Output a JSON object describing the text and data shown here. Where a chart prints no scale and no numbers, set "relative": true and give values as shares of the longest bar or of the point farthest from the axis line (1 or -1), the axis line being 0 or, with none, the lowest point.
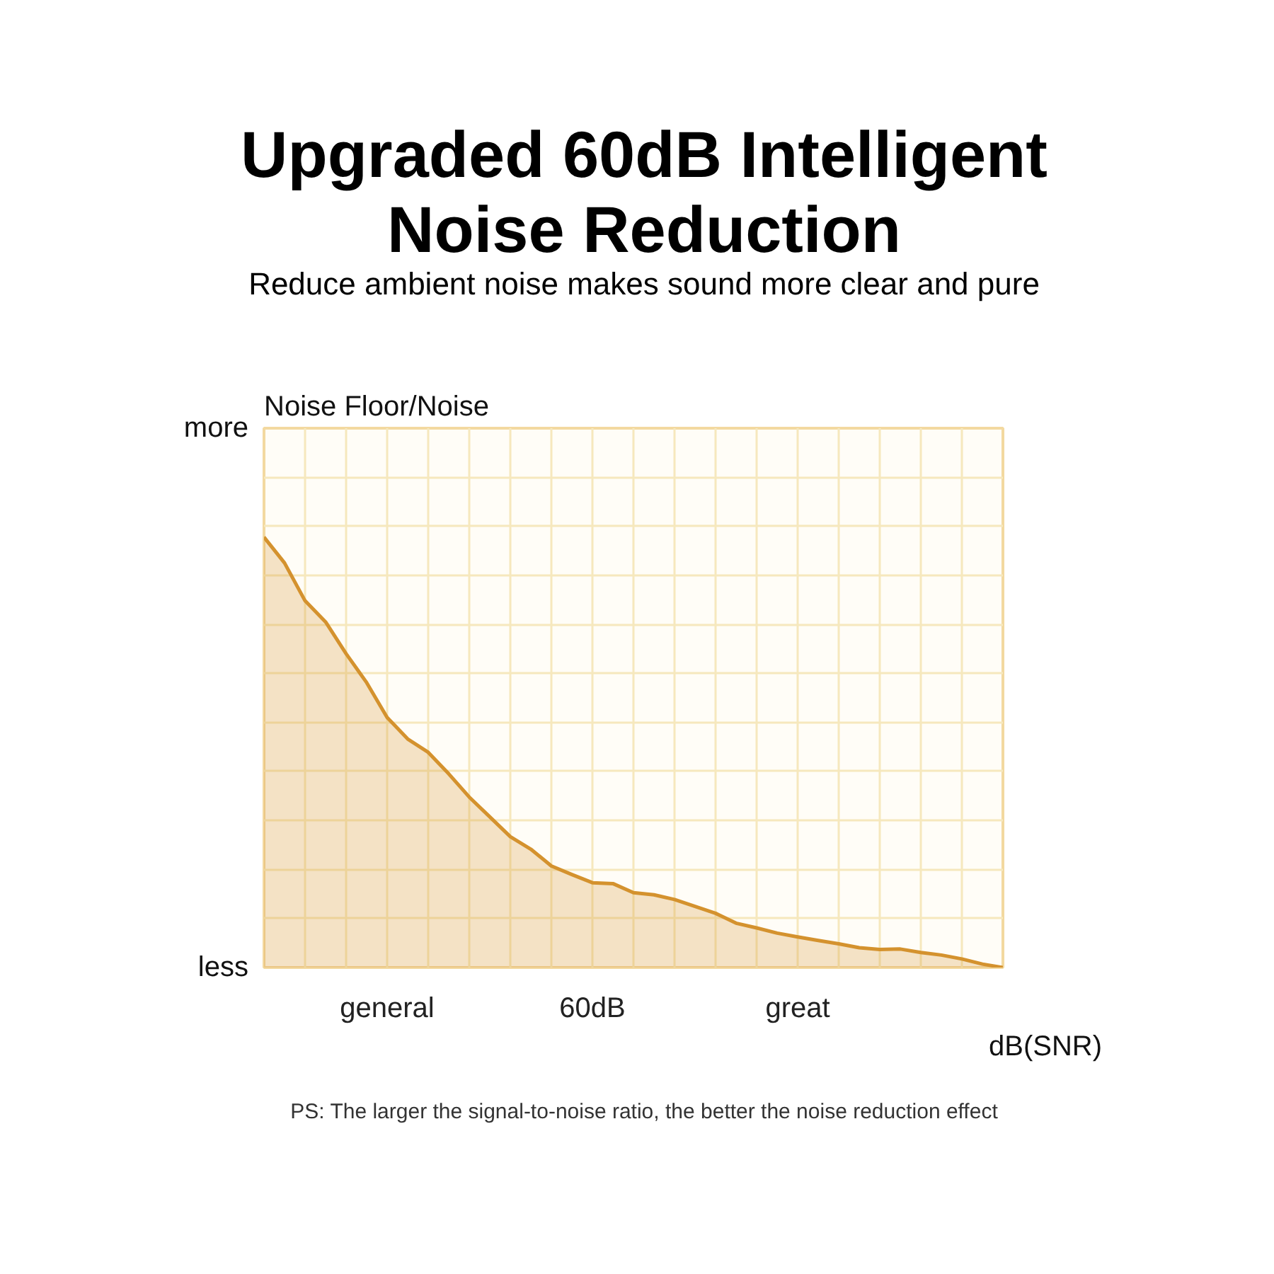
{
  "chart_data": {
    "type": "area",
    "title": "Upgraded 60dB Intelligent Noise Reduction",
    "subtitle": "Reduce ambient noise makes sound more clear and pure",
    "ylabel": "Noise Floor/Noise",
    "xlabel": "dB(SNR)",
    "relative": true,
    "grid": true,
    "categories": [
      null,
      null,
      null,
      null,
      null,
      null,
      "general",
      null,
      null,
      null,
      null,
      null,
      null,
      null,
      null,
      null,
      "60dB",
      null,
      null,
      null,
      null,
      null,
      null,
      null,
      null,
      null,
      "great",
      null,
      null,
      null,
      null,
      null,
      null,
      null,
      null,
      null,
      null
    ],
    "annotations": [
      "more",
      "less",
      "PS: The larger the signal-to-noise ratio, the better the noise reduction effect"
    ],
    "series": [
      {
        "color": "#d4922e",
        "values": [
          1.0,
          0.94,
          0.852,
          0.803,
          0.729,
          0.662,
          0.581,
          0.531,
          0.5,
          0.45,
          0.396,
          0.35,
          0.304,
          0.275,
          0.236,
          0.216,
          0.197,
          0.195,
          0.174,
          0.169,
          0.158,
          0.142,
          0.126,
          0.103,
          0.092,
          0.08,
          0.071,
          0.063,
          0.055,
          0.046,
          0.042,
          0.043,
          0.035,
          0.029,
          0.02,
          0.008,
          0.0
        ]
      }
    ]
  }
}
